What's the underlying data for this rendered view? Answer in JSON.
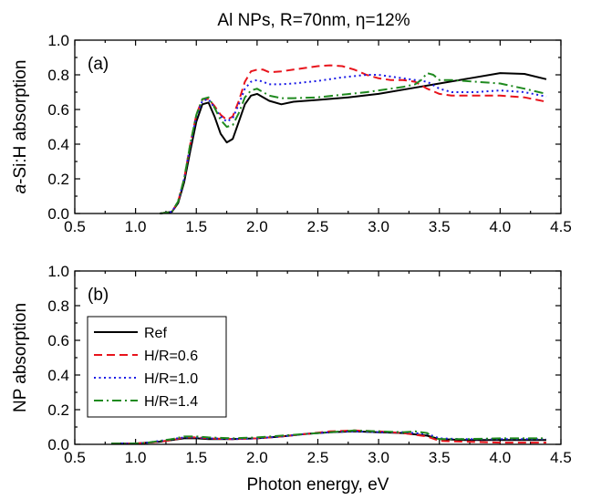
{
  "title": "Al NPs, R=70nm, η=12%",
  "colors": {
    "ref": "#000000",
    "h06": "#e8141c",
    "h10": "#1a1ae6",
    "h14": "#1f8a1f"
  },
  "chart_data": [
    {
      "type": "line",
      "panel_label": "(a)",
      "xlabel": "",
      "ylabel": "a-Si:H absorption",
      "ylabel_italic_part": "a",
      "ylabel_rest": "-Si:H absorption",
      "xlim": [
        0.5,
        4.5
      ],
      "ylim": [
        0.0,
        1.0
      ],
      "xticks": [
        "0.5",
        "1.0",
        "1.5",
        "2.0",
        "2.5",
        "3.0",
        "3.5",
        "4.0",
        "4.5"
      ],
      "yticks": [
        "0.0",
        "0.2",
        "0.4",
        "0.6",
        "0.8",
        "1.0"
      ],
      "series": [
        {
          "key": "ref",
          "style": "solid",
          "x": [
            1.2,
            1.3,
            1.35,
            1.4,
            1.45,
            1.5,
            1.55,
            1.6,
            1.65,
            1.7,
            1.75,
            1.8,
            1.85,
            1.9,
            1.95,
            2.0,
            2.1,
            2.2,
            2.3,
            2.5,
            2.75,
            3.0,
            3.25,
            3.5,
            3.75,
            4.0,
            4.2,
            4.38
          ],
          "y": [
            0.0,
            0.01,
            0.06,
            0.18,
            0.36,
            0.53,
            0.63,
            0.64,
            0.56,
            0.46,
            0.41,
            0.43,
            0.53,
            0.63,
            0.68,
            0.69,
            0.65,
            0.63,
            0.645,
            0.655,
            0.67,
            0.69,
            0.72,
            0.75,
            0.78,
            0.81,
            0.805,
            0.775
          ]
        },
        {
          "key": "h06",
          "style": "dashed",
          "x": [
            1.2,
            1.3,
            1.35,
            1.4,
            1.45,
            1.5,
            1.55,
            1.6,
            1.65,
            1.7,
            1.75,
            1.8,
            1.85,
            1.9,
            1.95,
            2.0,
            2.05,
            2.1,
            2.2,
            2.3,
            2.4,
            2.5,
            2.6,
            2.7,
            2.8,
            2.9,
            3.0,
            3.1,
            3.2,
            3.3,
            3.4,
            3.5,
            3.6,
            3.8,
            4.0,
            4.2,
            4.38
          ],
          "y": [
            0.0,
            0.01,
            0.07,
            0.2,
            0.4,
            0.57,
            0.66,
            0.66,
            0.62,
            0.57,
            0.54,
            0.56,
            0.65,
            0.76,
            0.82,
            0.83,
            0.83,
            0.815,
            0.82,
            0.83,
            0.84,
            0.85,
            0.855,
            0.85,
            0.83,
            0.8,
            0.78,
            0.77,
            0.77,
            0.76,
            0.72,
            0.69,
            0.68,
            0.68,
            0.68,
            0.67,
            0.645
          ]
        },
        {
          "key": "h10",
          "style": "dotted",
          "x": [
            1.2,
            1.3,
            1.35,
            1.4,
            1.45,
            1.5,
            1.55,
            1.6,
            1.65,
            1.7,
            1.75,
            1.8,
            1.85,
            1.9,
            1.95,
            2.0,
            2.05,
            2.1,
            2.2,
            2.3,
            2.5,
            2.7,
            2.9,
            3.0,
            3.1,
            3.2,
            3.3,
            3.4,
            3.5,
            3.6,
            3.8,
            4.0,
            4.2,
            4.38
          ],
          "y": [
            0.0,
            0.01,
            0.07,
            0.2,
            0.39,
            0.56,
            0.65,
            0.66,
            0.61,
            0.56,
            0.53,
            0.55,
            0.63,
            0.72,
            0.76,
            0.77,
            0.76,
            0.745,
            0.745,
            0.75,
            0.765,
            0.785,
            0.8,
            0.8,
            0.79,
            0.78,
            0.77,
            0.76,
            0.72,
            0.7,
            0.7,
            0.71,
            0.7,
            0.675
          ]
        },
        {
          "key": "h14",
          "style": "dashdot",
          "x": [
            1.2,
            1.3,
            1.35,
            1.4,
            1.45,
            1.5,
            1.55,
            1.6,
            1.65,
            1.7,
            1.75,
            1.8,
            1.85,
            1.9,
            1.95,
            2.0,
            2.05,
            2.1,
            2.2,
            2.3,
            2.5,
            2.7,
            2.9,
            3.0,
            3.1,
            3.2,
            3.3,
            3.35,
            3.4,
            3.45,
            3.5,
            3.6,
            3.8,
            4.0,
            4.2,
            4.38
          ],
          "y": [
            0.0,
            0.01,
            0.07,
            0.2,
            0.4,
            0.57,
            0.66,
            0.67,
            0.61,
            0.54,
            0.5,
            0.51,
            0.58,
            0.67,
            0.71,
            0.72,
            0.7,
            0.68,
            0.665,
            0.665,
            0.67,
            0.685,
            0.7,
            0.71,
            0.72,
            0.73,
            0.745,
            0.77,
            0.81,
            0.8,
            0.77,
            0.77,
            0.76,
            0.75,
            0.72,
            0.69
          ]
        }
      ]
    },
    {
      "type": "line",
      "panel_label": "(b)",
      "xlabel": "Photon energy, eV",
      "ylabel": "NP absorption",
      "xlim": [
        0.5,
        4.5
      ],
      "ylim": [
        0.0,
        1.0
      ],
      "xticks": [
        "0.5",
        "1.0",
        "1.5",
        "2.0",
        "2.5",
        "3.0",
        "3.5",
        "4.0",
        "4.5"
      ],
      "yticks": [
        "0.0",
        "0.2",
        "0.4",
        "0.6",
        "0.8",
        "1.0"
      ],
      "legend": {
        "position": "left",
        "entries": [
          {
            "key": "ref",
            "style": "solid",
            "label": "Ref"
          },
          {
            "key": "h06",
            "style": "dashed",
            "label": "H/R=0.6"
          },
          {
            "key": "h10",
            "style": "dotted",
            "label": "H/R=1.0"
          },
          {
            "key": "h14",
            "style": "dashdot",
            "label": "H/R=1.4"
          }
        ]
      },
      "series": [
        {
          "key": "ref",
          "style": "solid",
          "x": [
            0.8,
            0.9,
            1.0,
            1.1,
            1.2,
            1.3,
            1.4,
            1.5,
            1.6,
            1.8,
            2.0,
            2.2,
            2.4,
            2.6,
            2.8,
            3.0,
            3.2,
            3.4,
            3.5,
            3.7,
            4.0,
            4.38
          ],
          "y": [
            0.005,
            0.005,
            0.005,
            0.01,
            0.015,
            0.025,
            0.035,
            0.035,
            0.03,
            0.03,
            0.035,
            0.045,
            0.06,
            0.07,
            0.075,
            0.07,
            0.065,
            0.05,
            0.03,
            0.025,
            0.025,
            0.025
          ]
        },
        {
          "key": "h06",
          "style": "dashed",
          "x": [
            0.8,
            0.9,
            1.0,
            1.1,
            1.2,
            1.3,
            1.4,
            1.5,
            1.6,
            1.8,
            2.0,
            2.2,
            2.4,
            2.6,
            2.8,
            3.0,
            3.2,
            3.4,
            3.5,
            3.7,
            4.0,
            4.38
          ],
          "y": [
            0.005,
            0.005,
            0.005,
            0.01,
            0.015,
            0.025,
            0.04,
            0.04,
            0.035,
            0.03,
            0.035,
            0.045,
            0.06,
            0.075,
            0.08,
            0.075,
            0.065,
            0.045,
            0.02,
            0.015,
            0.01,
            0.01
          ]
        },
        {
          "key": "h10",
          "style": "dotted",
          "x": [
            0.8,
            0.9,
            1.0,
            1.1,
            1.2,
            1.3,
            1.4,
            1.5,
            1.6,
            1.8,
            2.0,
            2.2,
            2.4,
            2.6,
            2.8,
            3.0,
            3.2,
            3.4,
            3.5,
            3.7,
            4.0,
            4.38
          ],
          "y": [
            0.005,
            0.005,
            0.005,
            0.01,
            0.02,
            0.03,
            0.04,
            0.04,
            0.035,
            0.03,
            0.035,
            0.045,
            0.06,
            0.07,
            0.075,
            0.07,
            0.07,
            0.06,
            0.035,
            0.03,
            0.03,
            0.03
          ]
        },
        {
          "key": "h14",
          "style": "dashdot",
          "x": [
            0.8,
            0.9,
            1.0,
            1.1,
            1.2,
            1.3,
            1.4,
            1.5,
            1.6,
            1.8,
            2.0,
            2.2,
            2.4,
            2.6,
            2.8,
            3.0,
            3.2,
            3.3,
            3.4,
            3.45,
            3.5,
            3.7,
            4.0,
            4.38
          ],
          "y": [
            0.005,
            0.005,
            0.005,
            0.01,
            0.02,
            0.03,
            0.045,
            0.045,
            0.04,
            0.035,
            0.04,
            0.05,
            0.06,
            0.07,
            0.08,
            0.075,
            0.07,
            0.075,
            0.065,
            0.04,
            0.03,
            0.03,
            0.035,
            0.035
          ]
        }
      ]
    }
  ]
}
